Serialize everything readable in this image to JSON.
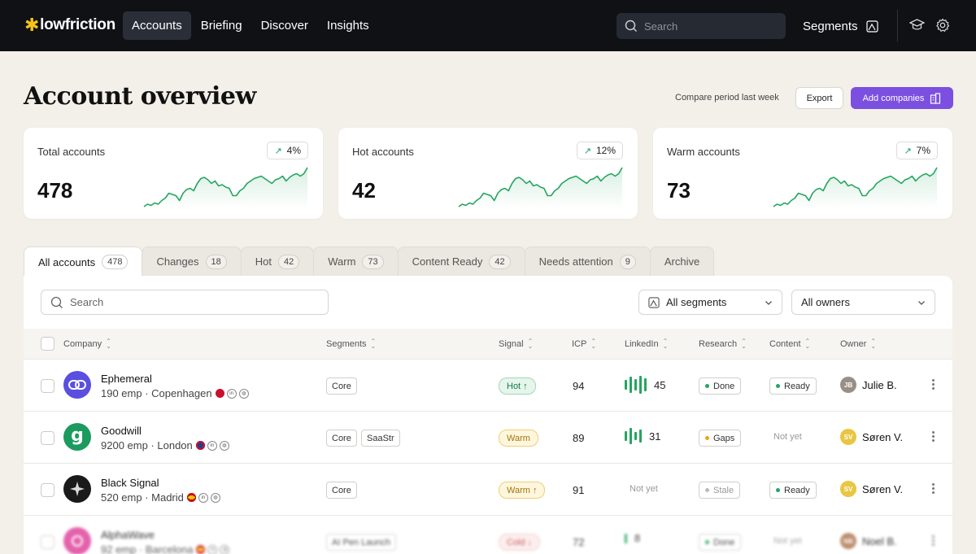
{
  "nav": {
    "brand": "lowfriction",
    "links": [
      "Accounts",
      "Briefing",
      "Discover",
      "Insights"
    ],
    "active": "Accounts",
    "search_placeholder": "Search",
    "segments_label": "Segments"
  },
  "header": {
    "title": "Account overview",
    "compare": "Compare period last week",
    "export_label": "Export",
    "add_label": "Add companies"
  },
  "stats": [
    {
      "label": "Total accounts",
      "value": "478",
      "delta": "4%",
      "trend": [
        3,
        5,
        4,
        6,
        5,
        8,
        10,
        14,
        13,
        12,
        8,
        14,
        17,
        18,
        16,
        22,
        26,
        27,
        25,
        22,
        24,
        20,
        21,
        19,
        18,
        12,
        12,
        16,
        18,
        22,
        24,
        26,
        27,
        28,
        26,
        24,
        22,
        25,
        26,
        28,
        24,
        27,
        29,
        30,
        28,
        30,
        35
      ]
    },
    {
      "label": "Hot accounts",
      "value": "42",
      "delta": "12%",
      "trend": [
        3,
        5,
        4,
        6,
        5,
        8,
        10,
        14,
        13,
        12,
        8,
        14,
        17,
        18,
        16,
        22,
        26,
        27,
        25,
        22,
        24,
        20,
        21,
        19,
        18,
        12,
        12,
        16,
        18,
        22,
        24,
        26,
        27,
        28,
        26,
        24,
        22,
        25,
        26,
        28,
        24,
        27,
        29,
        30,
        28,
        30,
        35
      ]
    },
    {
      "label": "Warm accounts",
      "value": "73",
      "delta": "7%",
      "trend": [
        3,
        5,
        4,
        6,
        5,
        8,
        10,
        14,
        13,
        12,
        8,
        14,
        17,
        18,
        16,
        22,
        26,
        27,
        25,
        22,
        24,
        20,
        21,
        19,
        18,
        12,
        12,
        16,
        18,
        22,
        24,
        26,
        27,
        28,
        26,
        24,
        22,
        25,
        26,
        28,
        24,
        27,
        29,
        30,
        28,
        30,
        35
      ]
    }
  ],
  "tabs": [
    {
      "label": "All accounts",
      "count": "478"
    },
    {
      "label": "Changes",
      "count": "18"
    },
    {
      "label": "Hot",
      "count": "42"
    },
    {
      "label": "Warm",
      "count": "73"
    },
    {
      "label": "Content Ready",
      "count": "42"
    },
    {
      "label": "Needs attention",
      "count": "9"
    },
    {
      "label": "Archive",
      "count": ""
    }
  ],
  "table": {
    "search_placeholder": "Search",
    "segment_filter": "All segments",
    "owner_filter": "All owners",
    "columns": [
      "Company",
      "Segments",
      "Signal",
      "ICP",
      "LinkedIn",
      "Research",
      "Content",
      "Owner"
    ],
    "rows": [
      {
        "name": "Ephemeral",
        "meta": "190 emp · Copenhagen",
        "segments": [
          "Core"
        ],
        "signal": "Hot ↑",
        "signal_type": "hot",
        "icp": "94",
        "linkedin": "45",
        "research": "Done",
        "content": "Ready",
        "owner": "Julie B."
      },
      {
        "name": "Goodwill",
        "meta": "9200 emp · London",
        "segments": [
          "Core",
          "SaaStr"
        ],
        "signal": "Warm",
        "signal_type": "warm",
        "icp": "89",
        "linkedin": "31",
        "research": "Gaps",
        "content": "Not yet",
        "owner": "Søren V."
      },
      {
        "name": "Black Signal",
        "meta": "520 emp · Madrid",
        "segments": [
          "Core"
        ],
        "signal": "Warm ↑",
        "signal_type": "warm",
        "icp": "91",
        "linkedin": "Not yet",
        "research": "Stale",
        "content": "Ready",
        "owner": "Søren V."
      },
      {
        "name": "AlphaWave",
        "meta": "92 emp · Barcelona",
        "segments": [
          "AI Pen Launch"
        ],
        "signal": "Cold ↓",
        "signal_type": "cold",
        "icp": "72",
        "linkedin": "8",
        "research": "Done",
        "content": "Not yet",
        "owner": "Noel B."
      }
    ]
  }
}
